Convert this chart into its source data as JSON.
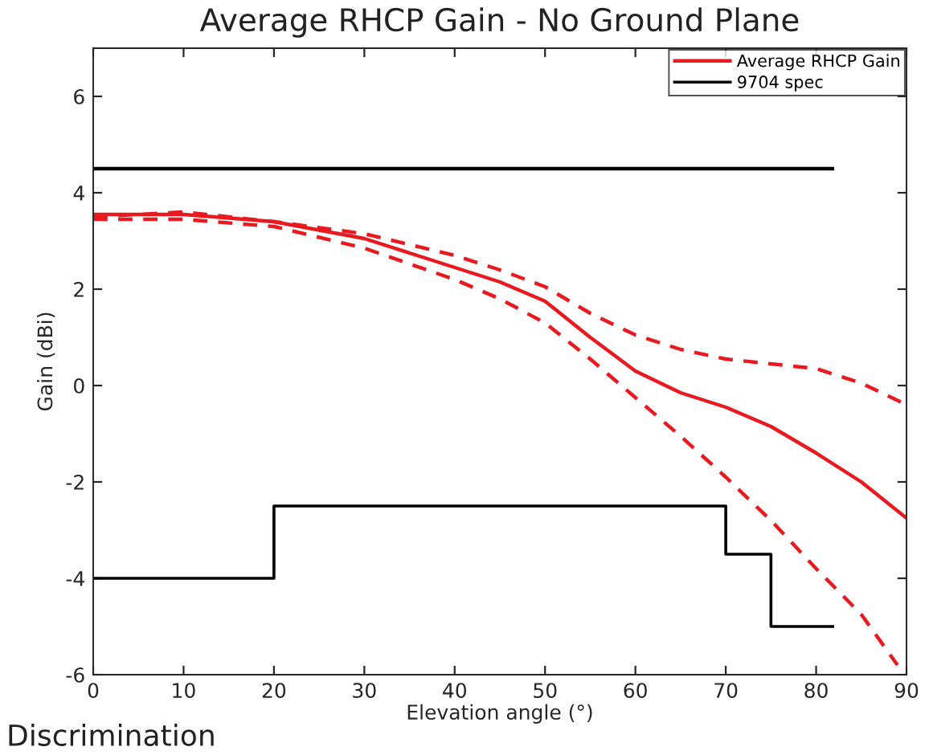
{
  "chart_data": {
    "type": "line",
    "title": "Average RHCP Gain - No Ground Plane",
    "xlabel": "Elevation angle (°)",
    "ylabel": "Gain (dBi)",
    "xlim": [
      0,
      90
    ],
    "xticks": [
      0,
      10,
      20,
      30,
      40,
      50,
      60,
      70,
      80,
      90
    ],
    "ylim": [
      -6,
      7
    ],
    "yticks": [
      -6,
      -4,
      -2,
      0,
      2,
      4,
      6
    ],
    "grid": false,
    "legend": "top right",
    "marker": "none",
    "annotations": [
      "Discrimination"
    ],
    "series": [
      {
        "name": "Average RHCP Gain",
        "color": "#e8191f",
        "line_style": "solid",
        "x": [
          0,
          10,
          20,
          30,
          40,
          45,
          50,
          55,
          60,
          65,
          70,
          75,
          80,
          85,
          90
        ],
        "values": [
          3.55,
          3.55,
          3.4,
          3.05,
          2.45,
          2.15,
          1.75,
          1.0,
          0.3,
          -0.15,
          -0.45,
          -0.85,
          -1.4,
          -2.0,
          -2.75
        ]
      },
      {
        "name": "9704 spec",
        "color": "#000000",
        "line_style": "solid",
        "type": "step",
        "x": [
          0,
          20,
          70,
          75,
          82
        ],
        "values": [
          -4,
          -2.5,
          -3.5,
          -5,
          -5
        ]
      },
      {
        "color": "#e8191f",
        "line_style": "dashed",
        "x": [
          0,
          10,
          20,
          30,
          40,
          45,
          50,
          55,
          60,
          65,
          70,
          75,
          80,
          85,
          90
        ],
        "values": [
          3.5,
          3.6,
          3.4,
          3.15,
          2.7,
          2.4,
          2.05,
          1.5,
          1.05,
          0.75,
          0.55,
          0.45,
          0.35,
          0.05,
          -0.4
        ]
      },
      {
        "color": "#e8191f",
        "line_style": "dashed",
        "x": [
          0,
          10,
          20,
          30,
          40,
          45,
          50,
          55,
          60,
          65,
          70,
          75,
          80,
          85,
          89
        ],
        "values": [
          3.45,
          3.45,
          3.3,
          2.85,
          2.2,
          1.8,
          1.3,
          0.55,
          -0.25,
          -1.05,
          -1.9,
          -2.8,
          -3.8,
          -4.75,
          -5.8
        ]
      },
      {
        "color": "#000000",
        "line_style": "solid",
        "x": [
          0,
          82
        ],
        "values": [
          4.5,
          4.5
        ]
      }
    ]
  }
}
